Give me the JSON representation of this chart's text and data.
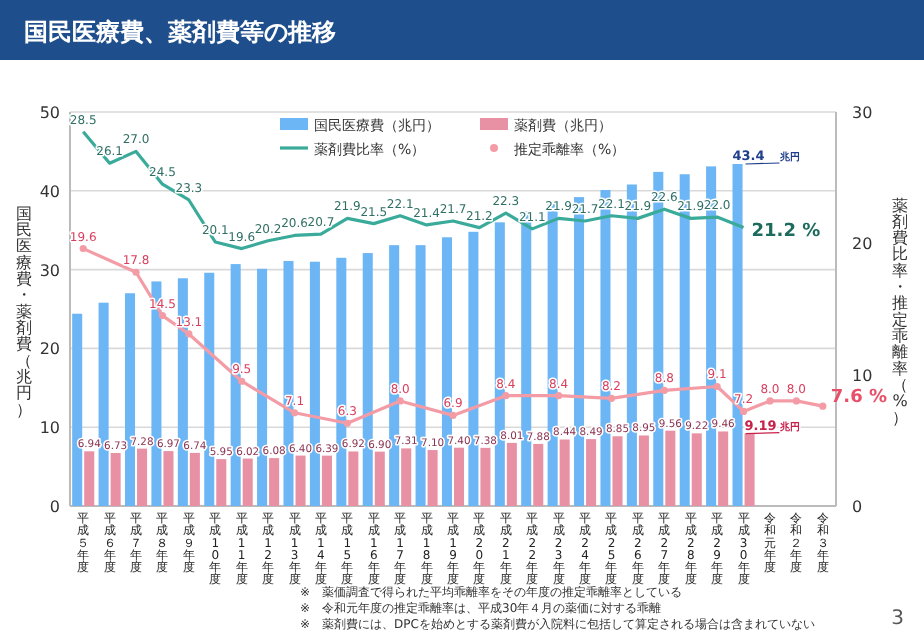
{
  "chart_data": {
    "type": "bar",
    "title": "国民医療費、薬剤費等の推移",
    "ylabel": "国民医療費・薬剤費（兆円）",
    "y2label": "薬剤費比率・推定乖離率（%）",
    "categories": [
      "平成５年度",
      "平成６年度",
      "平成７年度",
      "平成８年度",
      "平成９年度",
      "平成10年度",
      "平成11年度",
      "平成12年度",
      "平成13年度",
      "平成14年度",
      "平成15年度",
      "平成16年度",
      "平成17年度",
      "平成18年度",
      "平成19年度",
      "平成20年度",
      "平成21年度",
      "平成22年度",
      "平成23年度",
      "平成24年度",
      "平成25年度",
      "平成26年度",
      "平成27年度",
      "平成28年度",
      "平成29年度",
      "平成30年度",
      "令和元年度",
      "令和２年度",
      "令和３年度"
    ],
    "ylim": [
      0,
      50
    ],
    "yticks": [
      0,
      10,
      20,
      30,
      40,
      50
    ],
    "y2lim": [
      0,
      30
    ],
    "y2ticks": [
      0,
      10,
      20,
      30
    ],
    "grid": "y",
    "legend": "top right",
    "series": [
      {
        "name": "国民医療費（兆円）",
        "color": "#6cb6f5",
        "values": [
          24.4,
          25.8,
          27.0,
          28.5,
          28.9,
          29.6,
          30.7,
          30.1,
          31.1,
          31.0,
          31.5,
          32.1,
          33.1,
          33.1,
          34.1,
          34.8,
          36.0,
          37.4,
          38.6,
          39.2,
          40.1,
          40.8,
          42.4,
          42.1,
          43.1,
          43.4,
          null,
          null,
          null
        ],
        "value_labels": [
          null,
          null,
          null,
          null,
          null,
          null,
          null,
          null,
          null,
          null,
          null,
          null,
          null,
          null,
          null,
          null,
          null,
          null,
          null,
          null,
          null,
          null,
          null,
          null,
          null,
          "43.4",
          null,
          null,
          null
        ]
      },
      {
        "name": "薬剤費（兆円）",
        "color": "#e891a5",
        "values": [
          6.94,
          6.73,
          7.28,
          6.97,
          6.74,
          5.95,
          6.02,
          6.08,
          6.4,
          6.39,
          6.92,
          6.9,
          7.31,
          7.1,
          7.4,
          7.38,
          8.01,
          7.88,
          8.44,
          8.49,
          8.85,
          8.95,
          9.56,
          9.22,
          9.46,
          9.19,
          null,
          null,
          null
        ],
        "value_labels": [
          "6.94",
          "6.73",
          "7.28",
          "6.97",
          "6.74",
          "5.95",
          "6.02",
          "6.08",
          "6.40",
          "6.39",
          "6.92",
          "6.90",
          "7.31",
          "7.10",
          "7.40",
          "7.38",
          "8.01",
          "7.88",
          "8.44",
          "8.49",
          "8.85",
          "8.95",
          "9.56",
          "9.22",
          "9.46",
          "9.19",
          null,
          null,
          null
        ]
      },
      {
        "name": "薬剤費比率（%）",
        "type": "line",
        "axis": "y2",
        "marker": "none",
        "color": "#3aab9a",
        "values": [
          28.5,
          26.1,
          27.0,
          24.5,
          23.3,
          20.1,
          19.6,
          20.2,
          20.6,
          20.7,
          21.9,
          21.5,
          22.1,
          21.4,
          21.7,
          21.2,
          22.3,
          21.1,
          21.9,
          21.7,
          22.1,
          21.9,
          22.6,
          21.9,
          22.0,
          21.2,
          null,
          null,
          null
        ],
        "value_labels": [
          "28.5",
          "26.1",
          "27.0",
          "24.5",
          "23.3",
          "20.1",
          "19.6",
          "20.2",
          "20.6",
          "20.7",
          "21.9",
          "21.5",
          "22.1",
          "21.4",
          "21.7",
          "21.2",
          "22.3",
          "21.1",
          "21.9",
          "21.7",
          "22.1",
          "21.9",
          "22.6",
          "21.9",
          "22.0",
          "21.2 %",
          null,
          null,
          null
        ]
      },
      {
        "name": "推定乖離率（%）",
        "type": "line",
        "axis": "y2",
        "marker": "circle",
        "color": "#f49ca6",
        "values": [
          19.6,
          null,
          17.8,
          14.5,
          13.1,
          null,
          9.5,
          null,
          7.1,
          null,
          6.3,
          null,
          8.0,
          null,
          6.9,
          null,
          8.4,
          null,
          8.4,
          null,
          8.2,
          null,
          8.8,
          null,
          9.1,
          7.2,
          8.0,
          8.0,
          7.6
        ],
        "value_labels": [
          "19.6",
          null,
          "17.8",
          "14.5",
          "13.1",
          null,
          "9.5",
          null,
          "7.1",
          null,
          "6.3",
          null,
          "8.0",
          null,
          "6.9",
          null,
          "8.4",
          null,
          "8.4",
          null,
          "8.2",
          null,
          "8.8",
          null,
          "9.1",
          "7.2",
          "8.0",
          "8.0",
          "7.6 %"
        ]
      }
    ],
    "annotations": [
      {
        "text": "兆円",
        "x": "平成30年度",
        "y": 43.4
      },
      {
        "text": "兆円",
        "x": "平成30年度",
        "y": 9.19
      },
      "※　薬価調査で得られた平均乖離率をその年度の推定乖離率としている",
      "※　令和元年度の推定乖離率は、平成30年４月の薬価に対する乖離",
      "※　薬剤費には、DPCを始めとする薬剤費が入院料に包括して算定される場合は含まれていない",
      "3"
    ]
  }
}
